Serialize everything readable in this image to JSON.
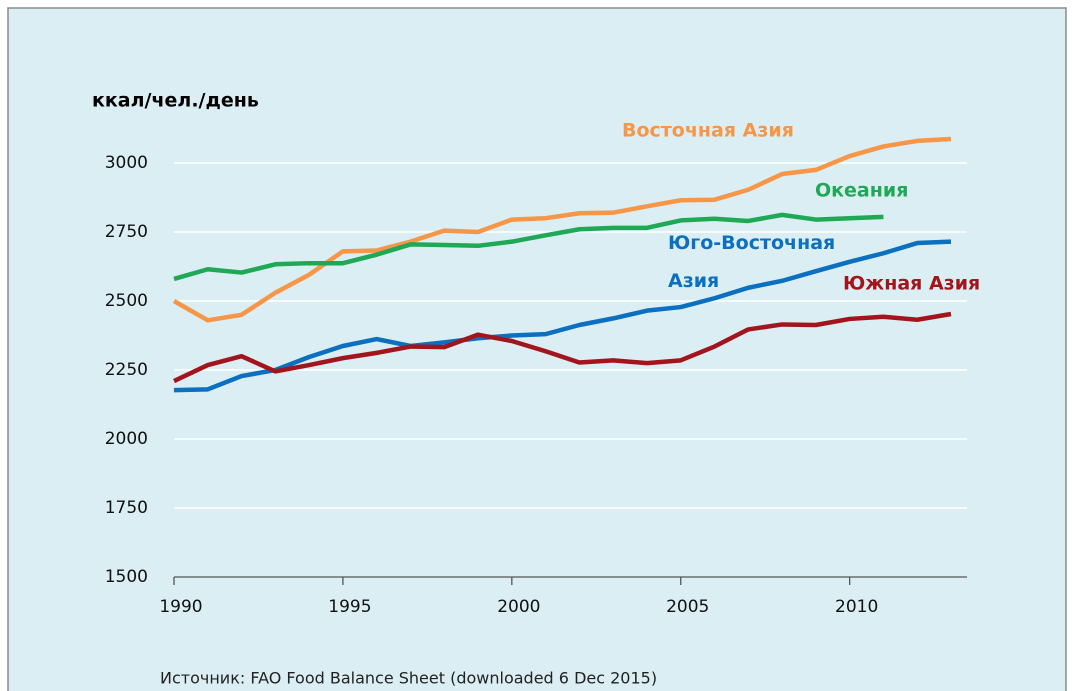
{
  "chart_data": {
    "type": "line",
    "y_label": "ккал/чел./день",
    "source": "Источник: FAO Food Balance Sheet (downloaded 6 Dec 2015)",
    "x": [
      1990,
      1991,
      1992,
      1993,
      1994,
      1995,
      1996,
      1997,
      1998,
      1999,
      2000,
      2001,
      2002,
      2003,
      2004,
      2005,
      2006,
      2007,
      2008,
      2009,
      2010,
      2011,
      2012,
      2013
    ],
    "series": [
      {
        "name": "Восточная Азия",
        "color": "#f79646",
        "values": [
          2500,
          2430,
          2450,
          2530,
          2595,
          2680,
          2683,
          2715,
          2755,
          2750,
          2795,
          2800,
          2818,
          2820,
          2843,
          2865,
          2867,
          2903,
          2960,
          2975,
          3025,
          3060,
          3080,
          3087
        ]
      },
      {
        "name": "Океания",
        "color": "#1fa855",
        "values": [
          2580,
          2615,
          2603,
          2633,
          2637,
          2637,
          2668,
          2705,
          2703,
          2700,
          2715,
          2738,
          2760,
          2765,
          2765,
          2792,
          2798,
          2790,
          2812,
          2795,
          2800,
          2805,
          null,
          null
        ]
      },
      {
        "name": "Юго-Восточная Азия",
        "color": "#0a70bf",
        "values": [
          2177,
          2180,
          2228,
          2250,
          2297,
          2337,
          2362,
          2337,
          2350,
          2365,
          2375,
          2380,
          2413,
          2437,
          2465,
          2478,
          2510,
          2548,
          2573,
          2608,
          2642,
          2673,
          2710,
          2715
        ]
      },
      {
        "name": "Южная Азия",
        "color": "#a3151c",
        "values": [
          2210,
          2268,
          2300,
          2245,
          2268,
          2293,
          2312,
          2335,
          2333,
          2378,
          2355,
          2318,
          2277,
          2285,
          2275,
          2285,
          2335,
          2397,
          2415,
          2413,
          2435,
          2443,
          2432,
          2453
        ]
      }
    ],
    "xlim": [
      1990,
      2013
    ],
    "xticks": [
      1990,
      1995,
      2000,
      2005,
      2010
    ],
    "ylim": [
      1500,
      3000
    ],
    "yticks": [
      1500,
      1750,
      2000,
      2250,
      2500,
      2750,
      3000
    ],
    "grid": true
  }
}
